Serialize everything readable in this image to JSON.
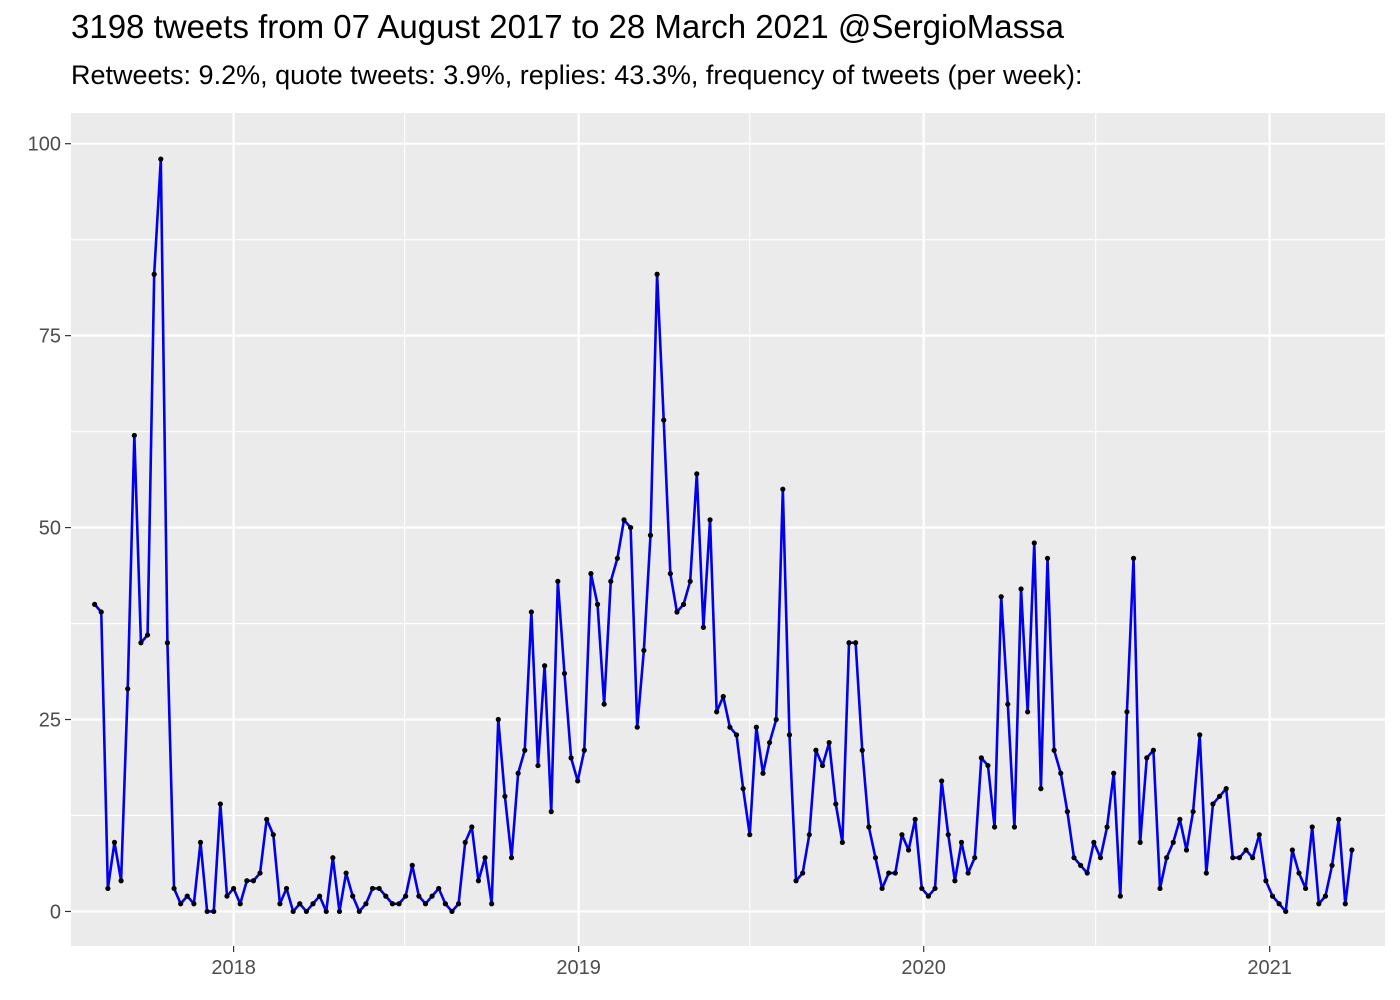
{
  "chart_data": {
    "type": "line",
    "title": "3198 tweets from 07 August 2017 to 28 March 2021 @SergioMassa",
    "subtitle": "Retweets: 9.2%, quote tweets: 3.9%, replies: 43.3%, frequency of tweets (per week):",
    "xlabel": "",
    "ylabel": "",
    "xlim": [
      "2017-07-13",
      "2021-05-03"
    ],
    "ylim": [
      -4.5,
      104
    ],
    "x_ticks": [
      "2018",
      "2019",
      "2020",
      "2021"
    ],
    "y_ticks": [
      0,
      25,
      50,
      75,
      100
    ],
    "grid": true,
    "line_color": "#0000ee",
    "point_color": "#000000",
    "panel_color": "#ebebeb",
    "series": [
      {
        "values": [
          [
            "2017-08-07",
            40
          ],
          [
            "2017-08-14",
            39
          ],
          [
            "2017-08-21",
            3
          ],
          [
            "2017-08-28",
            9
          ],
          [
            "2017-09-04",
            4
          ],
          [
            "2017-09-11",
            29
          ],
          [
            "2017-09-18",
            62
          ],
          [
            "2017-09-25",
            35
          ],
          [
            "2017-10-02",
            36
          ],
          [
            "2017-10-09",
            83
          ],
          [
            "2017-10-16",
            98
          ],
          [
            "2017-10-23",
            35
          ],
          [
            "2017-10-30",
            3
          ],
          [
            "2017-11-06",
            1
          ],
          [
            "2017-11-13",
            2
          ],
          [
            "2017-11-20",
            1
          ],
          [
            "2017-11-27",
            9
          ],
          [
            "2017-12-04",
            0
          ],
          [
            "2017-12-11",
            0
          ],
          [
            "2017-12-18",
            14
          ],
          [
            "2017-12-25",
            2
          ],
          [
            "2018-01-01",
            3
          ],
          [
            "2018-01-08",
            1
          ],
          [
            "2018-01-15",
            4
          ],
          [
            "2018-01-22",
            4
          ],
          [
            "2018-01-29",
            5
          ],
          [
            "2018-02-05",
            12
          ],
          [
            "2018-02-12",
            10
          ],
          [
            "2018-02-19",
            1
          ],
          [
            "2018-02-26",
            3
          ],
          [
            "2018-03-05",
            0
          ],
          [
            "2018-03-12",
            1
          ],
          [
            "2018-03-19",
            0
          ],
          [
            "2018-03-26",
            1
          ],
          [
            "2018-04-02",
            2
          ],
          [
            "2018-04-09",
            0
          ],
          [
            "2018-04-16",
            7
          ],
          [
            "2018-04-23",
            0
          ],
          [
            "2018-04-30",
            5
          ],
          [
            "2018-05-07",
            2
          ],
          [
            "2018-05-14",
            0
          ],
          [
            "2018-05-21",
            1
          ],
          [
            "2018-05-28",
            3
          ],
          [
            "2018-06-04",
            3
          ],
          [
            "2018-06-11",
            2
          ],
          [
            "2018-06-18",
            1
          ],
          [
            "2018-06-25",
            1
          ],
          [
            "2018-07-02",
            2
          ],
          [
            "2018-07-09",
            6
          ],
          [
            "2018-07-16",
            2
          ],
          [
            "2018-07-23",
            1
          ],
          [
            "2018-07-30",
            2
          ],
          [
            "2018-08-06",
            3
          ],
          [
            "2018-08-13",
            1
          ],
          [
            "2018-08-20",
            0
          ],
          [
            "2018-08-27",
            1
          ],
          [
            "2018-09-03",
            9
          ],
          [
            "2018-09-10",
            11
          ],
          [
            "2018-09-17",
            4
          ],
          [
            "2018-09-24",
            7
          ],
          [
            "2018-10-01",
            1
          ],
          [
            "2018-10-08",
            25
          ],
          [
            "2018-10-15",
            15
          ],
          [
            "2018-10-22",
            7
          ],
          [
            "2018-10-29",
            18
          ],
          [
            "2018-11-05",
            21
          ],
          [
            "2018-11-12",
            39
          ],
          [
            "2018-11-19",
            19
          ],
          [
            "2018-11-26",
            32
          ],
          [
            "2018-12-03",
            13
          ],
          [
            "2018-12-10",
            43
          ],
          [
            "2018-12-17",
            31
          ],
          [
            "2018-12-24",
            20
          ],
          [
            "2018-12-31",
            17
          ],
          [
            "2019-01-07",
            21
          ],
          [
            "2019-01-14",
            44
          ],
          [
            "2019-01-21",
            40
          ],
          [
            "2019-01-28",
            27
          ],
          [
            "2019-02-04",
            43
          ],
          [
            "2019-02-11",
            46
          ],
          [
            "2019-02-18",
            51
          ],
          [
            "2019-02-25",
            50
          ],
          [
            "2019-03-04",
            24
          ],
          [
            "2019-03-11",
            34
          ],
          [
            "2019-03-18",
            49
          ],
          [
            "2019-03-25",
            83
          ],
          [
            "2019-04-01",
            64
          ],
          [
            "2019-04-08",
            44
          ],
          [
            "2019-04-15",
            39
          ],
          [
            "2019-04-22",
            40
          ],
          [
            "2019-04-29",
            43
          ],
          [
            "2019-05-06",
            57
          ],
          [
            "2019-05-13",
            37
          ],
          [
            "2019-05-20",
            51
          ],
          [
            "2019-05-27",
            26
          ],
          [
            "2019-06-03",
            28
          ],
          [
            "2019-06-10",
            24
          ],
          [
            "2019-06-17",
            23
          ],
          [
            "2019-06-24",
            16
          ],
          [
            "2019-07-01",
            10
          ],
          [
            "2019-07-08",
            24
          ],
          [
            "2019-07-15",
            18
          ],
          [
            "2019-07-22",
            22
          ],
          [
            "2019-07-29",
            25
          ],
          [
            "2019-08-05",
            55
          ],
          [
            "2019-08-12",
            23
          ],
          [
            "2019-08-19",
            4
          ],
          [
            "2019-08-26",
            5
          ],
          [
            "2019-09-02",
            10
          ],
          [
            "2019-09-09",
            21
          ],
          [
            "2019-09-16",
            19
          ],
          [
            "2019-09-23",
            22
          ],
          [
            "2019-09-30",
            14
          ],
          [
            "2019-10-07",
            9
          ],
          [
            "2019-10-14",
            35
          ],
          [
            "2019-10-21",
            35
          ],
          [
            "2019-10-28",
            21
          ],
          [
            "2019-11-04",
            11
          ],
          [
            "2019-11-11",
            7
          ],
          [
            "2019-11-18",
            3
          ],
          [
            "2019-11-25",
            5
          ],
          [
            "2019-12-02",
            5
          ],
          [
            "2019-12-09",
            10
          ],
          [
            "2019-12-16",
            8
          ],
          [
            "2019-12-23",
            12
          ],
          [
            "2019-12-30",
            3
          ],
          [
            "2020-01-06",
            2
          ],
          [
            "2020-01-13",
            3
          ],
          [
            "2020-01-20",
            17
          ],
          [
            "2020-01-27",
            10
          ],
          [
            "2020-02-03",
            4
          ],
          [
            "2020-02-10",
            9
          ],
          [
            "2020-02-17",
            5
          ],
          [
            "2020-02-24",
            7
          ],
          [
            "2020-03-02",
            20
          ],
          [
            "2020-03-09",
            19
          ],
          [
            "2020-03-16",
            11
          ],
          [
            "2020-03-23",
            41
          ],
          [
            "2020-03-30",
            27
          ],
          [
            "2020-04-06",
            11
          ],
          [
            "2020-04-13",
            42
          ],
          [
            "2020-04-20",
            26
          ],
          [
            "2020-04-27",
            48
          ],
          [
            "2020-05-04",
            16
          ],
          [
            "2020-05-11",
            46
          ],
          [
            "2020-05-18",
            21
          ],
          [
            "2020-05-25",
            18
          ],
          [
            "2020-06-01",
            13
          ],
          [
            "2020-06-08",
            7
          ],
          [
            "2020-06-15",
            6
          ],
          [
            "2020-06-22",
            5
          ],
          [
            "2020-06-29",
            9
          ],
          [
            "2020-07-06",
            7
          ],
          [
            "2020-07-13",
            11
          ],
          [
            "2020-07-20",
            18
          ],
          [
            "2020-07-27",
            2
          ],
          [
            "2020-08-03",
            26
          ],
          [
            "2020-08-10",
            46
          ],
          [
            "2020-08-17",
            9
          ],
          [
            "2020-08-24",
            20
          ],
          [
            "2020-08-31",
            21
          ],
          [
            "2020-09-07",
            3
          ],
          [
            "2020-09-14",
            7
          ],
          [
            "2020-09-21",
            9
          ],
          [
            "2020-09-28",
            12
          ],
          [
            "2020-10-05",
            8
          ],
          [
            "2020-10-12",
            13
          ],
          [
            "2020-10-19",
            23
          ],
          [
            "2020-10-26",
            5
          ],
          [
            "2020-11-02",
            14
          ],
          [
            "2020-11-09",
            15
          ],
          [
            "2020-11-16",
            16
          ],
          [
            "2020-11-23",
            7
          ],
          [
            "2020-11-30",
            7
          ],
          [
            "2020-12-07",
            8
          ],
          [
            "2020-12-14",
            7
          ],
          [
            "2020-12-21",
            10
          ],
          [
            "2020-12-28",
            4
          ],
          [
            "2021-01-04",
            2
          ],
          [
            "2021-01-11",
            1
          ],
          [
            "2021-01-18",
            0
          ],
          [
            "2021-01-25",
            8
          ],
          [
            "2021-02-01",
            5
          ],
          [
            "2021-02-08",
            3
          ],
          [
            "2021-02-15",
            11
          ],
          [
            "2021-02-22",
            1
          ],
          [
            "2021-03-01",
            2
          ],
          [
            "2021-03-08",
            6
          ],
          [
            "2021-03-15",
            12
          ],
          [
            "2021-03-22",
            1
          ],
          [
            "2021-03-29",
            8
          ]
        ]
      }
    ]
  }
}
